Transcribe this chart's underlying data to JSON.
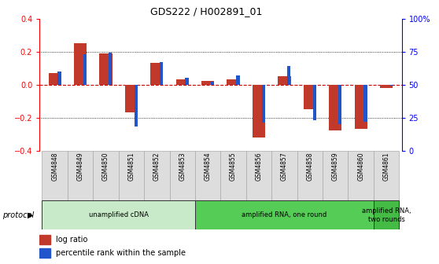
{
  "title": "GDS222 / H002891_01",
  "samples": [
    "GSM4848",
    "GSM4849",
    "GSM4850",
    "GSM4851",
    "GSM4852",
    "GSM4853",
    "GSM4854",
    "GSM4855",
    "GSM4856",
    "GSM4857",
    "GSM4858",
    "GSM4859",
    "GSM4860",
    "GSM4861"
  ],
  "log_ratio": [
    0.07,
    0.25,
    0.19,
    -0.17,
    0.13,
    0.03,
    0.02,
    0.03,
    -0.32,
    0.05,
    -0.15,
    -0.28,
    -0.27,
    -0.02
  ],
  "percentile": [
    60,
    73,
    74,
    18,
    67,
    55,
    52,
    57,
    21,
    64,
    23,
    20,
    22,
    49
  ],
  "bar_color_red": "#C0392B",
  "bar_color_blue": "#2255CC",
  "zero_line_color": "#CC0000",
  "ylim": [
    -0.4,
    0.4
  ],
  "yticks_left": [
    -0.4,
    -0.2,
    0.0,
    0.2,
    0.4
  ],
  "yticks_right_vals": [
    0,
    25,
    50,
    75,
    100
  ],
  "yticks_right_labels": [
    "0",
    "25",
    "50",
    "75",
    "100%"
  ],
  "protocol_groups": [
    {
      "label": "unamplified cDNA",
      "start": 0,
      "end": 5,
      "color": "#C8EAC8"
    },
    {
      "label": "amplified RNA, one round",
      "start": 6,
      "end": 12,
      "color": "#55CC55"
    },
    {
      "label": "amplified RNA,\ntwo rounds",
      "start": 13,
      "end": 13,
      "color": "#44BB44"
    }
  ],
  "legend_red": "log ratio",
  "legend_blue": "percentile rank within the sample",
  "protocol_label": "protocol",
  "red_bar_width": 0.5,
  "blue_bar_width": 0.13
}
